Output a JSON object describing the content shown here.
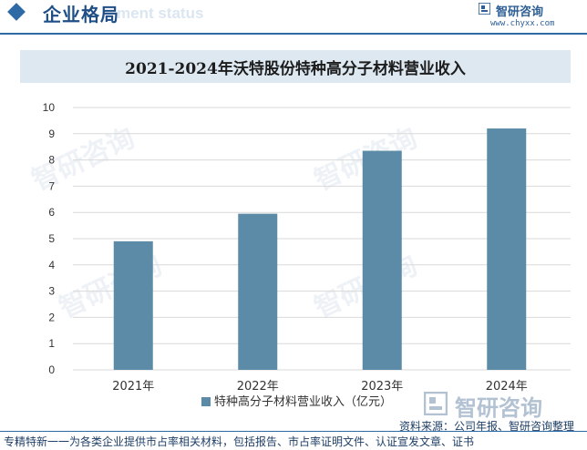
{
  "header": {
    "section_title": "企业格局",
    "ghost_text": "ment status",
    "logo_brand": "智研咨询",
    "logo_site": "www.chyxx.com"
  },
  "colors": {
    "bar": "#5b8ba6",
    "accent": "#2e6aa6",
    "title_band": "#dde8f1",
    "grid": "#d9d9d9"
  },
  "chart_data": {
    "type": "bar",
    "title": "2021-2024年沃特股份特种高分子材料营业收入",
    "categories": [
      "2021年",
      "2022年",
      "2023年",
      "2024年"
    ],
    "series": [
      {
        "name": "特种高分子材料营业收入（亿元）",
        "values": [
          4.9,
          5.95,
          8.35,
          9.2
        ]
      }
    ],
    "ylim": [
      0,
      10
    ],
    "yticks": [
      "0",
      "1",
      "2",
      "3",
      "4",
      "5",
      "6",
      "7",
      "8",
      "9",
      "10"
    ],
    "grid": true,
    "legend_position": "bottom"
  },
  "watermark_text": "智研咨询",
  "footer_logo_brand": "智研咨询",
  "source_text": "资料来源：公司年报、智研咨询整理",
  "footer_note": "专精特新一一为各类企业提供市占率相关材料，包括报告、市占率证明文件、认证宣发文章、证书"
}
